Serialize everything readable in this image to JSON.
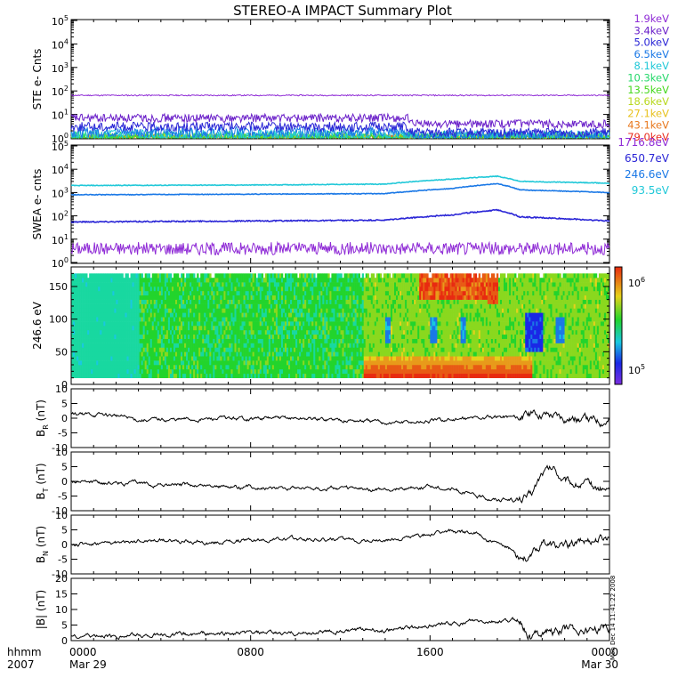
{
  "title": "STEREO-A IMPACT Summary Plot",
  "bottom_left": {
    "line1": "hhmm",
    "line2": "2007"
  },
  "x_ticks": [
    {
      "label": "0000",
      "sub": "Mar 29",
      "hours": 0
    },
    {
      "label": "0800",
      "sub": "",
      "hours": 8
    },
    {
      "label": "1600",
      "sub": "",
      "hours": 16
    },
    {
      "label": "0000",
      "sub": "Mar 30",
      "hours": 24
    }
  ],
  "side_stamp": "Mon Dec 14 11:41:22 2008",
  "colors": {
    "ste": [
      "#8f2bd6",
      "#6a1fc9",
      "#2a25d6",
      "#1a78e6",
      "#20c8d8",
      "#25d86a",
      "#46d81e",
      "#b8d81e",
      "#e8c21e",
      "#e8781e",
      "#e82a1e"
    ],
    "swea": [
      "#8f2bd6",
      "#2a25d6",
      "#1a78e6",
      "#20c8d8"
    ]
  },
  "chart_data": [
    {
      "type": "line",
      "ylabel": "STE e- Cnts",
      "yscale": "log",
      "ylim": [
        1,
        100000
      ],
      "y_ticks": [
        "10^0",
        "10^1",
        "10^2",
        "10^3",
        "10^4",
        "10^5"
      ],
      "series": [
        {
          "name": "1.9keV",
          "values_approx": 65
        },
        {
          "name": "3.4keV",
          "values_approx": 7
        },
        {
          "name": "5.0keV",
          "values_approx": 3
        },
        {
          "name": "6.5keV",
          "values_approx": 1.8
        },
        {
          "name": "8.1keV",
          "values_approx": 1.3
        },
        {
          "name": "10.3keV",
          "values_approx": 1.1
        },
        {
          "name": "13.5keV",
          "values_approx": 1.0
        },
        {
          "name": "18.6keV",
          "values_approx": 1.0
        },
        {
          "name": "27.1keV",
          "values_approx": 1.0
        },
        {
          "name": "43.1keV",
          "values_approx": 1.0
        },
        {
          "name": "79.0keV",
          "values_approx": 1.0
        }
      ]
    },
    {
      "type": "line",
      "ylabel": "SWEA e- cnts",
      "yscale": "log",
      "ylim": [
        1,
        100000
      ],
      "y_ticks": [
        "10^0",
        "10^1",
        "10^2",
        "10^3",
        "10^4",
        "10^5"
      ],
      "series": [
        {
          "name": "1716.8eV",
          "values_approx": 4
        },
        {
          "name": "650.7eV",
          "x_hours": [
            0,
            8,
            14,
            17,
            19,
            20,
            24
          ],
          "values": [
            55,
            60,
            65,
            110,
            180,
            90,
            60
          ]
        },
        {
          "name": "246.6eV",
          "x_hours": [
            0,
            8,
            14,
            17,
            19,
            20,
            24
          ],
          "values": [
            800,
            850,
            900,
            1500,
            2400,
            1300,
            1000
          ]
        },
        {
          "name": "93.5eV",
          "x_hours": [
            0,
            8,
            14,
            17,
            19,
            20,
            24
          ],
          "values": [
            2000,
            2100,
            2300,
            3800,
            5000,
            3000,
            2500
          ]
        }
      ]
    },
    {
      "type": "heatmap",
      "ylabel": "246.6 eV",
      "ylim": [
        0,
        180
      ],
      "y_ticks": [
        0,
        50,
        100,
        150
      ],
      "colorbar": {
        "scale": "log",
        "range": [
          100000,
          1000000
        ],
        "tick_labels": [
          "10^5",
          "10^6"
        ]
      }
    },
    {
      "type": "line",
      "ylabel": "B_R (nT)",
      "ylim": [
        -10,
        10
      ],
      "y_ticks": [
        -10,
        -5,
        0,
        5,
        10
      ],
      "x_hours": [
        0,
        2,
        3,
        5,
        8,
        10,
        12,
        14,
        15,
        16,
        17,
        19,
        20,
        21,
        22,
        23,
        24
      ],
      "values": [
        1.5,
        1,
        -0.5,
        -0.5,
        0,
        0,
        -0.5,
        -1.5,
        -1.5,
        -1,
        -0.5,
        0.5,
        0.5,
        2,
        0.5,
        -0.5,
        -0.5
      ]
    },
    {
      "type": "line",
      "ylabel": "B_T (nT)",
      "ylim": [
        -10,
        10
      ],
      "y_ticks": [
        -10,
        -5,
        0,
        5,
        10
      ],
      "x_hours": [
        0,
        2,
        4,
        6,
        8,
        10,
        12,
        14,
        16,
        17,
        18,
        19,
        20,
        20.5,
        21,
        21.5,
        22,
        23,
        24
      ],
      "values": [
        0,
        -0.5,
        -1,
        -1.5,
        -2,
        -2,
        -2.5,
        -3,
        -1.5,
        -2.5,
        -5,
        -6,
        -6.5,
        -5,
        3,
        4.5,
        0,
        -1.5,
        -3
      ]
    },
    {
      "type": "line",
      "ylabel": "B_N (nT)",
      "ylim": [
        -10,
        10
      ],
      "y_ticks": [
        -10,
        -5,
        0,
        5,
        10
      ],
      "x_hours": [
        0,
        2,
        4,
        6,
        8,
        10,
        12,
        14,
        15,
        16,
        17,
        18,
        19,
        20,
        20.5,
        21,
        22,
        23,
        24
      ],
      "values": [
        0,
        0.5,
        1.5,
        0.5,
        1.5,
        2,
        1.5,
        1.5,
        2.5,
        3.5,
        4.5,
        4,
        0,
        -3,
        -4.5,
        0.5,
        -1,
        1.5,
        3
      ]
    },
    {
      "type": "line",
      "ylabel": "|B| (nT)",
      "ylim": [
        0,
        20
      ],
      "y_ticks": [
        0,
        5,
        10,
        15,
        20
      ],
      "x_hours": [
        0,
        2,
        4,
        6,
        8,
        10,
        12,
        14,
        15,
        16,
        17,
        18,
        19,
        20,
        20.5,
        21,
        22,
        23,
        24
      ],
      "values": [
        1.5,
        1.5,
        2,
        2,
        2.5,
        2.5,
        3,
        3.5,
        4,
        5,
        5.5,
        6,
        6,
        6.5,
        1,
        3.5,
        3,
        3.5,
        4.5
      ]
    }
  ]
}
